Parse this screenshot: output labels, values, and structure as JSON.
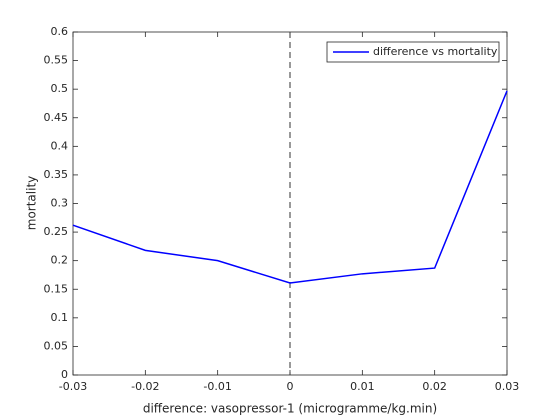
{
  "chart_data": {
    "type": "line",
    "x": [
      -0.03,
      -0.02,
      -0.01,
      0,
      0.01,
      0.02,
      0.03
    ],
    "series": [
      {
        "name": "difference vs mortality",
        "color": "#0000ff",
        "values": [
          0.262,
          0.218,
          0.2,
          0.161,
          0.177,
          0.187,
          0.497
        ]
      }
    ],
    "xlabel": "difference: vasopressor-1 (microgramme/kg.min)",
    "ylabel": "mortality",
    "xlim": [
      -0.03,
      0.03
    ],
    "xticks": [
      -0.03,
      -0.02,
      -0.01,
      0,
      0.01,
      0.02,
      0.03
    ],
    "ylim": [
      0,
      0.6
    ],
    "yticks": [
      0,
      0.05,
      0.1,
      0.15,
      0.2,
      0.25,
      0.3,
      0.35,
      0.4,
      0.45,
      0.5,
      0.55,
      0.6
    ],
    "vline_x": 0,
    "grid": false,
    "legend_position": "northeast"
  }
}
